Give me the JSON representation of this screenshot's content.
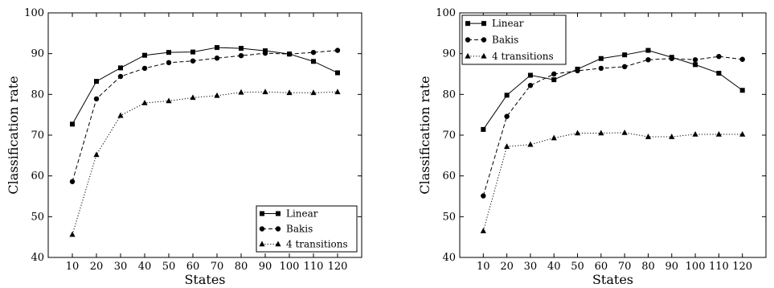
{
  "chart_data": [
    {
      "type": "line",
      "xlabel": "States",
      "ylabel": "Classification rate",
      "x": [
        10,
        20,
        30,
        40,
        50,
        60,
        70,
        80,
        90,
        100,
        110,
        120
      ],
      "xticks": [
        "10",
        "20",
        "30",
        "40",
        "50",
        "60",
        "70",
        "80",
        "90",
        "100",
        "110",
        "120"
      ],
      "yticks": [
        "40",
        "50",
        "60",
        "70",
        "80",
        "90",
        "100"
      ],
      "xlim": [
        0,
        130
      ],
      "ylim": [
        40,
        100
      ],
      "grid": false,
      "legend_position": "bottom-right",
      "series": [
        {
          "name": "Linear",
          "marker": "square",
          "line_style": "solid",
          "values": [
            72.7,
            83.2,
            86.5,
            89.6,
            90.3,
            90.4,
            91.5,
            91.3,
            90.7,
            89.9,
            88.1,
            85.3
          ]
        },
        {
          "name": "Bakis",
          "marker": "circle",
          "line_style": "dashed",
          "values": [
            58.6,
            78.9,
            84.4,
            86.4,
            87.8,
            88.2,
            88.9,
            89.5,
            90.1,
            89.9,
            90.3,
            90.8
          ]
        },
        {
          "name": "4 transitions",
          "marker": "triangle",
          "line_style": "dotted",
          "values": [
            45.6,
            65.2,
            74.8,
            77.9,
            78.4,
            79.2,
            79.7,
            80.5,
            80.6,
            80.4,
            80.4,
            80.6
          ]
        }
      ]
    },
    {
      "type": "line",
      "xlabel": "States",
      "ylabel": "Classification rate",
      "x": [
        10,
        20,
        30,
        40,
        50,
        60,
        70,
        80,
        90,
        100,
        110,
        120
      ],
      "xticks": [
        "10",
        "20",
        "30",
        "40",
        "50",
        "60",
        "70",
        "80",
        "90",
        "100",
        "110",
        "120"
      ],
      "yticks": [
        "40",
        "50",
        "60",
        "70",
        "80",
        "90",
        "100"
      ],
      "xlim": [
        0,
        130
      ],
      "ylim": [
        40,
        100
      ],
      "grid": false,
      "legend_position": "top-left",
      "series": [
        {
          "name": "Linear",
          "marker": "square",
          "line_style": "solid",
          "values": [
            71.4,
            79.8,
            84.7,
            83.6,
            86.2,
            88.8,
            89.7,
            90.8,
            89.1,
            87.3,
            85.2,
            81.0
          ]
        },
        {
          "name": "Bakis",
          "marker": "circle",
          "line_style": "dashed",
          "values": [
            55.1,
            74.6,
            82.2,
            85.0,
            85.8,
            86.4,
            86.8,
            88.5,
            88.8,
            88.5,
            89.3,
            88.6
          ]
        },
        {
          "name": "4 transitions",
          "marker": "triangle",
          "line_style": "dotted",
          "values": [
            46.5,
            67.2,
            67.7,
            69.3,
            70.5,
            70.5,
            70.6,
            69.6,
            69.6,
            70.2,
            70.2,
            70.2
          ]
        }
      ]
    }
  ]
}
